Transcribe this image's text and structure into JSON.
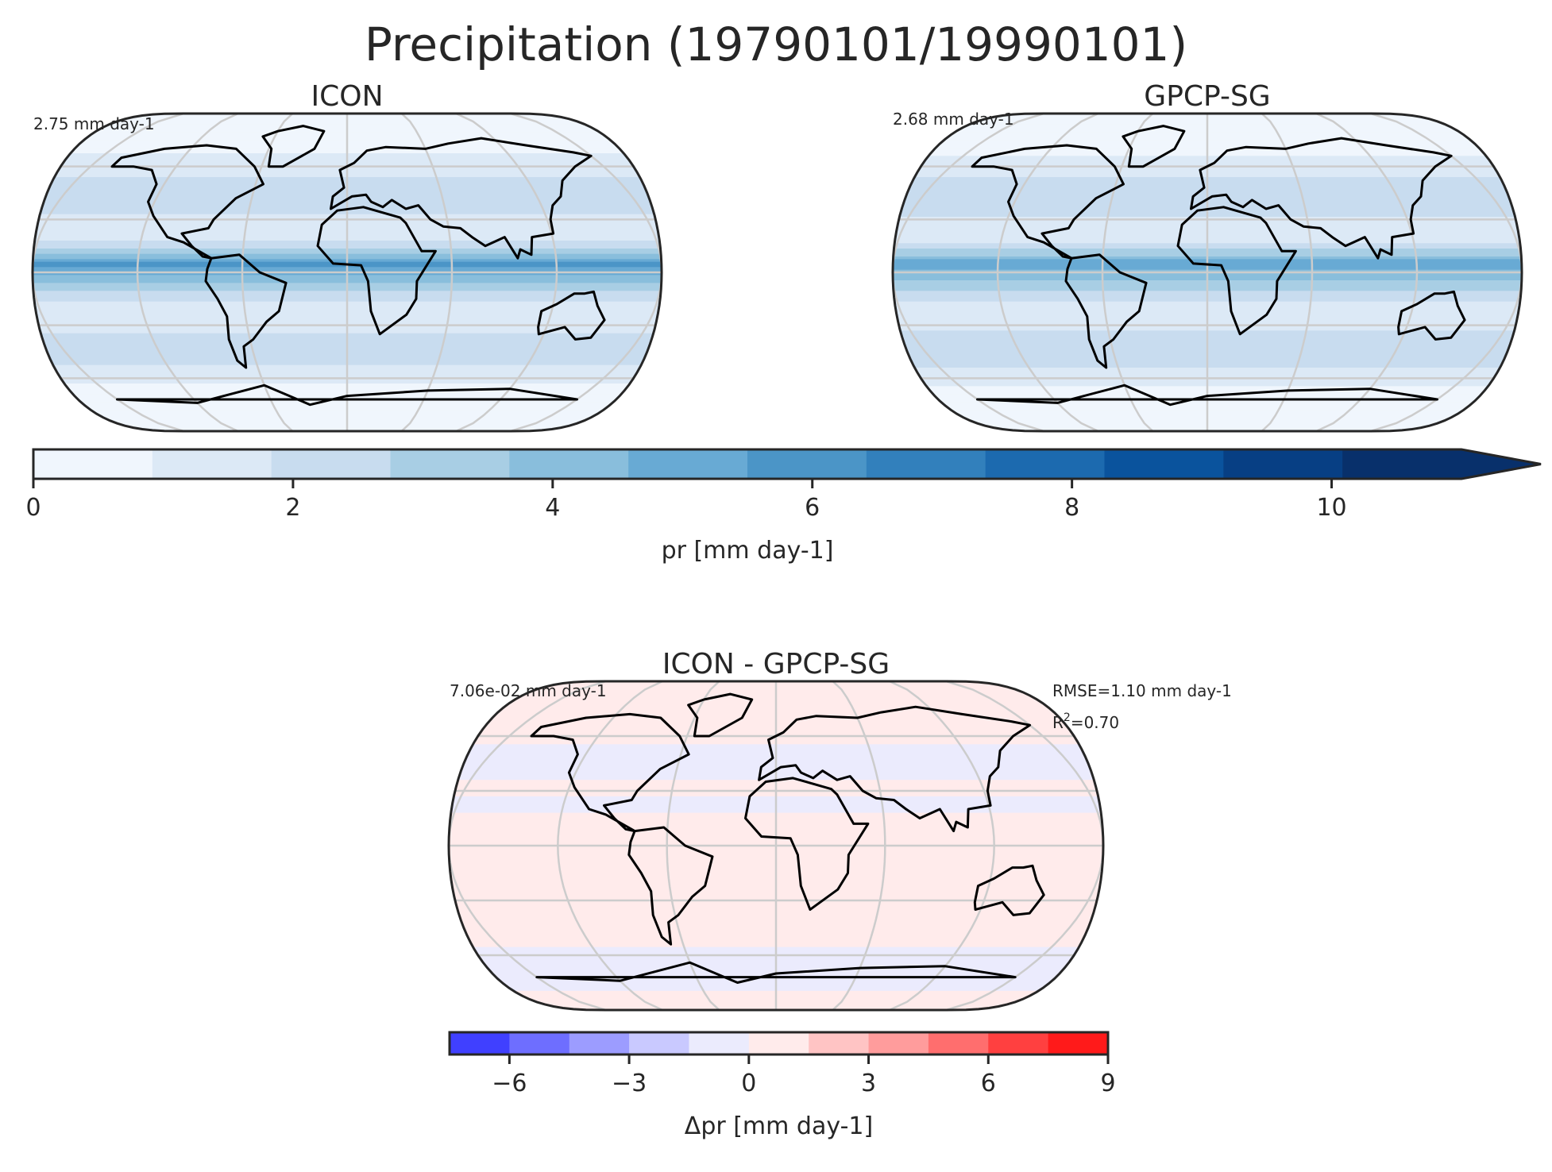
{
  "figure": {
    "suptitle": "Precipitation (19790101/19990101)"
  },
  "chart_data": [
    {
      "type": "heatmap",
      "projection": "Robinson",
      "title": "ICON",
      "annotation": "2.75 mm day-1",
      "variable": "pr",
      "unit": "mm day-1",
      "global_mean": 2.75,
      "colormap": "Blues",
      "levels": [
        0,
        1,
        2,
        3,
        4,
        5,
        6,
        7,
        8,
        9,
        10,
        11
      ],
      "zonal_mean_profile": {
        "lat": [
          -90,
          -70,
          -60,
          -45,
          -30,
          -20,
          -10,
          0,
          5,
          10,
          20,
          30,
          45,
          60,
          70,
          90
        ],
        "values": [
          0.2,
          0.6,
          1.2,
          2.8,
          1.6,
          1.3,
          3.0,
          5.2,
          6.4,
          4.0,
          1.4,
          1.8,
          2.6,
          1.6,
          0.8,
          0.2
        ]
      }
    },
    {
      "type": "heatmap",
      "projection": "Robinson",
      "title": "GPCP-SG",
      "annotation": "2.68 mm day-1",
      "variable": "pr",
      "unit": "mm day-1",
      "global_mean": 2.68,
      "colormap": "Blues",
      "levels": [
        0,
        1,
        2,
        3,
        4,
        5,
        6,
        7,
        8,
        9,
        10,
        11
      ],
      "zonal_mean_profile": {
        "lat": [
          -90,
          -70,
          -60,
          -45,
          -30,
          -20,
          -10,
          0,
          5,
          10,
          20,
          30,
          45,
          60,
          70,
          90
        ],
        "values": [
          0.3,
          0.5,
          1.4,
          2.9,
          1.7,
          1.4,
          3.0,
          4.6,
          5.8,
          3.8,
          1.3,
          1.9,
          2.7,
          1.6,
          0.7,
          0.3
        ]
      }
    },
    {
      "type": "heatmap",
      "projection": "Robinson",
      "title": "ICON - GPCP-SG",
      "annotation": "7.06e-02 mm day-1",
      "rmse_text": "RMSE=1.10 mm day-1",
      "r2_prefix": "R",
      "r2_sup": "2",
      "r2_suffix": "=0.70",
      "variable": "Δpr",
      "unit": "mm day-1",
      "mean_bias": 0.0706,
      "rmse": 1.1,
      "r2": 0.7,
      "colormap": "bwr",
      "levels": [
        -7.5,
        -6,
        -4.5,
        -3,
        -1.5,
        0,
        1.5,
        3,
        4.5,
        6,
        7.5,
        9
      ],
      "zonal_mean_profile": {
        "lat": [
          -90,
          -60,
          -45,
          -30,
          -10,
          0,
          5,
          10,
          20,
          30,
          45,
          60,
          90
        ],
        "values": [
          0.1,
          -0.2,
          0.4,
          0.3,
          0.6,
          0.2,
          1.0,
          1.2,
          -0.4,
          0.2,
          -0.3,
          0.1,
          0.1
        ]
      }
    }
  ],
  "colorbar_top": {
    "label": "pr [mm day-1]",
    "ticks": [
      0,
      2,
      4,
      6,
      8,
      10
    ],
    "tick_labels": [
      "0",
      "2",
      "4",
      "6",
      "8",
      "10"
    ],
    "range": [
      0,
      11
    ],
    "extend": "max",
    "colors": [
      "#f0f6fd",
      "#dce9f6",
      "#c8dcef",
      "#a8cee4",
      "#89bedc",
      "#68aad4",
      "#4b95c7",
      "#3280bc",
      "#1c6aaf",
      "#0a539d",
      "#073f84",
      "#08306b"
    ]
  },
  "colorbar_bottom": {
    "label": "Δpr [mm day-1]",
    "ticks": [
      -6,
      -3,
      0,
      3,
      6,
      9
    ],
    "tick_labels": [
      "−6",
      "−3",
      "0",
      "3",
      "6",
      "9"
    ],
    "range": [
      -7.5,
      9
    ],
    "colors": [
      "#4040ff",
      "#6e6eff",
      "#9c9cff",
      "#c9c9ff",
      "#ebebfd",
      "#ffebeb",
      "#ffc4c4",
      "#ff9c9c",
      "#ff6e6e",
      "#ff4040",
      "#ff1a1a"
    ]
  }
}
